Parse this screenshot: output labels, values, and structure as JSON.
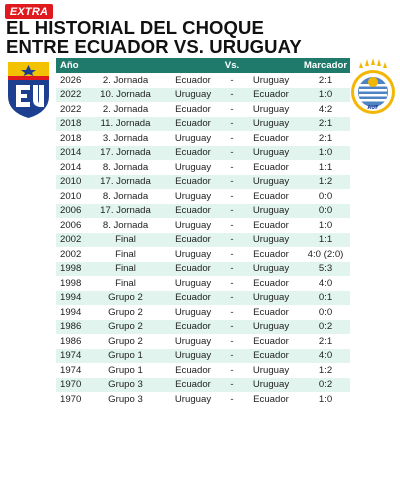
{
  "brand": {
    "logo_text": "EXTRA"
  },
  "header": {
    "title_line1": "EL HISTORIAL DEL CHOQUE",
    "title_line2": "ENTRE ECUADOR VS. URUGUAY"
  },
  "table": {
    "columns": [
      "Año",
      "",
      "",
      "Vs.",
      "",
      "Marcador"
    ],
    "rows": [
      {
        "year": "2026",
        "round": "2. Jornada",
        "home": "Ecuador",
        "vs": "-",
        "away": "Uruguay",
        "score": "2:1"
      },
      {
        "year": "2022",
        "round": "10. Jornada",
        "home": "Uruguay",
        "vs": "-",
        "away": "Ecuador",
        "score": "1:0"
      },
      {
        "year": "2022",
        "round": "2. Jornada",
        "home": "Ecuador",
        "vs": "-",
        "away": "Uruguay",
        "score": "4:2"
      },
      {
        "year": "2018",
        "round": "11. Jornada",
        "home": "Ecuador",
        "vs": "-",
        "away": "Uruguay",
        "score": "2:1"
      },
      {
        "year": "2018",
        "round": "3. Jornada",
        "home": "Uruguay",
        "vs": "-",
        "away": "Ecuador",
        "score": "2:1"
      },
      {
        "year": "2014",
        "round": "17. Jornada",
        "home": "Ecuador",
        "vs": "-",
        "away": "Uruguay",
        "score": "1:0"
      },
      {
        "year": "2014",
        "round": "8. Jornada",
        "home": "Uruguay",
        "vs": "-",
        "away": "Ecuador",
        "score": "1:1"
      },
      {
        "year": "2010",
        "round": "17. Jornada",
        "home": "Ecuador",
        "vs": "-",
        "away": "Uruguay",
        "score": "1:2"
      },
      {
        "year": "2010",
        "round": "8. Jornada",
        "home": "Uruguay",
        "vs": "-",
        "away": "Ecuador",
        "score": "0:0"
      },
      {
        "year": "2006",
        "round": "17. Jornada",
        "home": "Ecuador",
        "vs": "-",
        "away": "Uruguay",
        "score": "0:0"
      },
      {
        "year": "2006",
        "round": "8. Jornada",
        "home": "Uruguay",
        "vs": "-",
        "away": "Ecuador",
        "score": "1:0"
      },
      {
        "year": "2002",
        "round": "Final",
        "home": "Ecuador",
        "vs": "-",
        "away": "Uruguay",
        "score": "1:1"
      },
      {
        "year": "2002",
        "round": "Final",
        "home": "Uruguay",
        "vs": "-",
        "away": "Ecuador",
        "score": "4:0 (2:0)"
      },
      {
        "year": "1998",
        "round": "Final",
        "home": "Ecuador",
        "vs": "-",
        "away": "Uruguay",
        "score": "5:3"
      },
      {
        "year": "1998",
        "round": "Final",
        "home": "Uruguay",
        "vs": "-",
        "away": "Ecuador",
        "score": "4:0"
      },
      {
        "year": "1994",
        "round": "Grupo 2",
        "home": "Ecuador",
        "vs": "-",
        "away": "Uruguay",
        "score": "0:1"
      },
      {
        "year": "1994",
        "round": "Grupo 2",
        "home": "Uruguay",
        "vs": "-",
        "away": "Ecuador",
        "score": "0:0"
      },
      {
        "year": "1986",
        "round": "Grupo 2",
        "home": "Ecuador",
        "vs": "-",
        "away": "Uruguay",
        "score": "0:2"
      },
      {
        "year": "1986",
        "round": "Grupo 2",
        "home": "Uruguay",
        "vs": "-",
        "away": "Ecuador",
        "score": "2:1"
      },
      {
        "year": "1974",
        "round": "Grupo 1",
        "home": "Uruguay",
        "vs": "-",
        "away": "Ecuador",
        "score": "4:0"
      },
      {
        "year": "1974",
        "round": "Grupo 1",
        "home": "Ecuador",
        "vs": "-",
        "away": "Uruguay",
        "score": "1:2"
      },
      {
        "year": "1970",
        "round": "Grupo 3",
        "home": "Ecuador",
        "vs": "-",
        "away": "Uruguay",
        "score": "0:2"
      },
      {
        "year": "1970",
        "round": "Grupo 3",
        "home": "Uruguay",
        "vs": "-",
        "away": "Ecuador",
        "score": "1:0"
      }
    ]
  },
  "colors": {
    "header_bg": "#1f7a6b",
    "stripe": "#e1f5ee",
    "brand_red": "#e0191f"
  },
  "icons": {
    "left_crest": "ecuador-federation-crest-icon",
    "right_crest": "uruguay-federation-crest-icon"
  },
  "chart_data": {
    "type": "table",
    "title": "EL HISTORIAL DEL CHOQUE ENTRE ECUADOR VS. URUGUAY",
    "columns": [
      "Año",
      "",
      "",
      "Vs.",
      "",
      "Marcador"
    ]
  }
}
